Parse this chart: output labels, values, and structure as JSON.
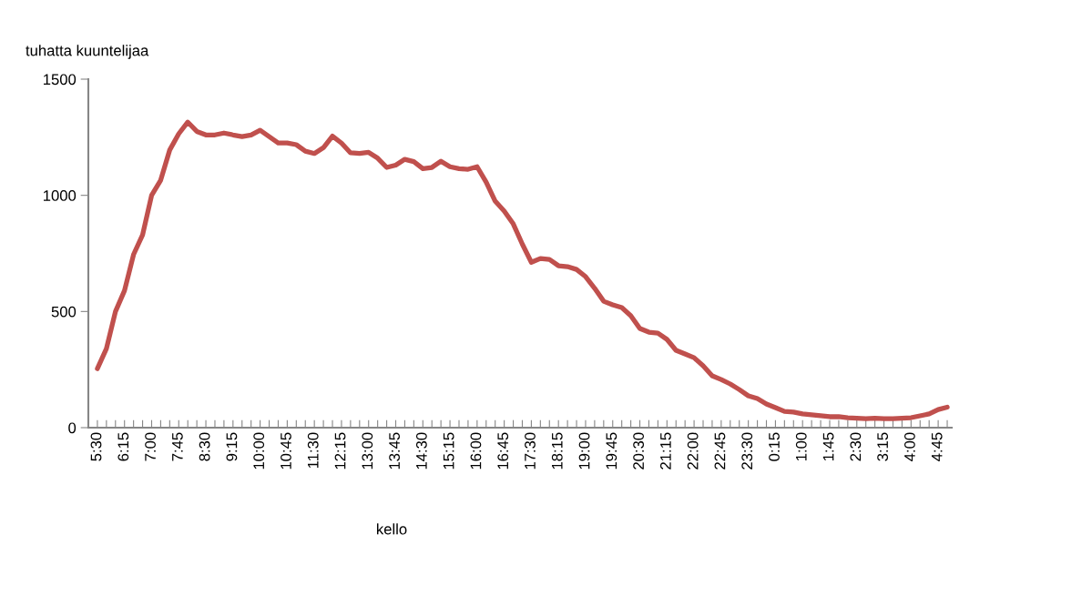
{
  "chart_data": {
    "type": "line",
    "ylabel": "tuhatta kuuntelijaa",
    "xlabel": "kello",
    "ylim": [
      0,
      1500
    ],
    "yticks": [
      0,
      500,
      1000,
      1500
    ],
    "grid": false,
    "marker": "none",
    "line_style": "solid",
    "categories": [
      "5:30",
      null,
      null,
      "6:15",
      null,
      null,
      "7:00",
      null,
      null,
      "7:45",
      null,
      null,
      "8:30",
      null,
      null,
      "9:15",
      null,
      null,
      "10:00",
      null,
      null,
      "10:45",
      null,
      null,
      "11:30",
      null,
      null,
      "12:15",
      null,
      null,
      "13:00",
      null,
      null,
      "13:45",
      null,
      null,
      "14:30",
      null,
      null,
      "15:15",
      null,
      null,
      "16:00",
      null,
      null,
      "16:45",
      null,
      null,
      "17:30",
      null,
      null,
      "18:15",
      null,
      null,
      "19:00",
      null,
      null,
      "19:45",
      null,
      null,
      "20:30",
      null,
      null,
      "21:15",
      null,
      null,
      "22:00",
      null,
      null,
      "22:45",
      null,
      null,
      "23:30",
      null,
      null,
      "0:15",
      null,
      null,
      "1:00",
      null,
      null,
      "1:45",
      null,
      null,
      "2:30",
      null,
      null,
      "3:15",
      null,
      null,
      "4:00",
      null,
      null,
      "4:45",
      null
    ],
    "series": [
      {
        "color": "#c0504d",
        "values": [
          254,
          340,
          500,
          590,
          745,
          830,
          1000,
          1065,
          1195,
          1265,
          1315,
          1275,
          1260,
          1260,
          1268,
          1260,
          1253,
          1260,
          1280,
          1253,
          1225,
          1225,
          1218,
          1190,
          1180,
          1205,
          1255,
          1225,
          1183,
          1180,
          1185,
          1160,
          1120,
          1130,
          1155,
          1145,
          1115,
          1120,
          1147,
          1123,
          1115,
          1112,
          1123,
          1057,
          975,
          932,
          877,
          790,
          712,
          728,
          724,
          697,
          693,
          681,
          650,
          600,
          544,
          529,
          517,
          482,
          427,
          411,
          407,
          380,
          333,
          317,
          301,
          266,
          223,
          207,
          188,
          164,
          137,
          125,
          102,
          86,
          70,
          67,
          59,
          55,
          51,
          47,
          47,
          43,
          41,
          39,
          41,
          39,
          39,
          41,
          43,
          51,
          59,
          78,
          88
        ]
      }
    ]
  }
}
